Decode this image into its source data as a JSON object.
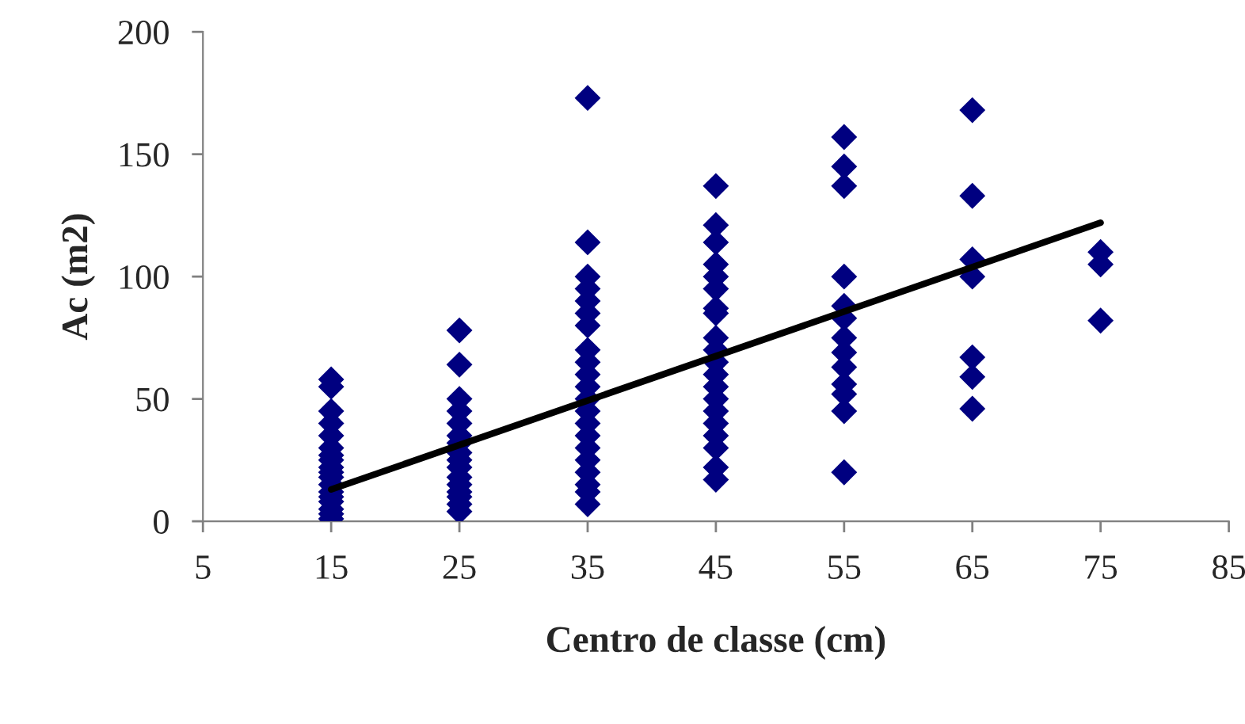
{
  "chart_data": {
    "type": "scatter",
    "xlabel": "Centro de classe (cm)",
    "ylabel": "Ac (m2)",
    "xlim": [
      5,
      85
    ],
    "xticks": [
      5,
      15,
      25,
      35,
      45,
      55,
      65,
      75,
      85
    ],
    "ylim": [
      0,
      200
    ],
    "yticks": [
      0,
      50,
      100,
      150,
      200
    ],
    "grid": false,
    "legend": false,
    "series": [
      {
        "marker": "diamond",
        "color": "#000080",
        "x": [
          15,
          15,
          15,
          15,
          15,
          15,
          15,
          15,
          15,
          15,
          15,
          15,
          15,
          15,
          15,
          15,
          15,
          15,
          25,
          25,
          25,
          25,
          25,
          25,
          25,
          25,
          25,
          25,
          25,
          25,
          25,
          25,
          25,
          25,
          35,
          35,
          35,
          35,
          35,
          35,
          35,
          35,
          35,
          35,
          35,
          35,
          35,
          35,
          35,
          35,
          35,
          35,
          35,
          35,
          35,
          45,
          45,
          45,
          45,
          45,
          45,
          45,
          45,
          45,
          45,
          45,
          45,
          45,
          45,
          45,
          45,
          45,
          45,
          45,
          45,
          55,
          55,
          55,
          55,
          55,
          55,
          55,
          55,
          55,
          55,
          55,
          55,
          55,
          65,
          65,
          65,
          65,
          65,
          65,
          65,
          75,
          75,
          75
        ],
        "values": [
          58,
          55,
          45,
          40,
          35,
          30,
          27,
          25,
          22,
          20,
          18,
          15,
          12,
          10,
          8,
          5,
          3,
          1,
          78,
          64,
          50,
          45,
          40,
          35,
          32,
          28,
          25,
          22,
          18,
          15,
          12,
          10,
          7,
          4,
          173,
          114,
          100,
          95,
          90,
          85,
          80,
          70,
          65,
          60,
          55,
          50,
          45,
          40,
          35,
          30,
          25,
          20,
          15,
          12,
          7,
          137,
          121,
          114,
          105,
          100,
          95,
          87,
          85,
          75,
          70,
          65,
          60,
          55,
          50,
          45,
          40,
          35,
          30,
          22,
          17,
          157,
          145,
          137,
          100,
          88,
          83,
          75,
          69,
          63,
          56,
          52,
          45,
          20,
          168,
          133,
          107,
          100,
          67,
          59,
          46,
          110,
          105,
          82
        ]
      },
      {
        "type": "line",
        "marker": "none",
        "line_style": "solid",
        "color": "#000000",
        "x": [
          15,
          75
        ],
        "values": [
          13,
          122
        ]
      }
    ]
  }
}
